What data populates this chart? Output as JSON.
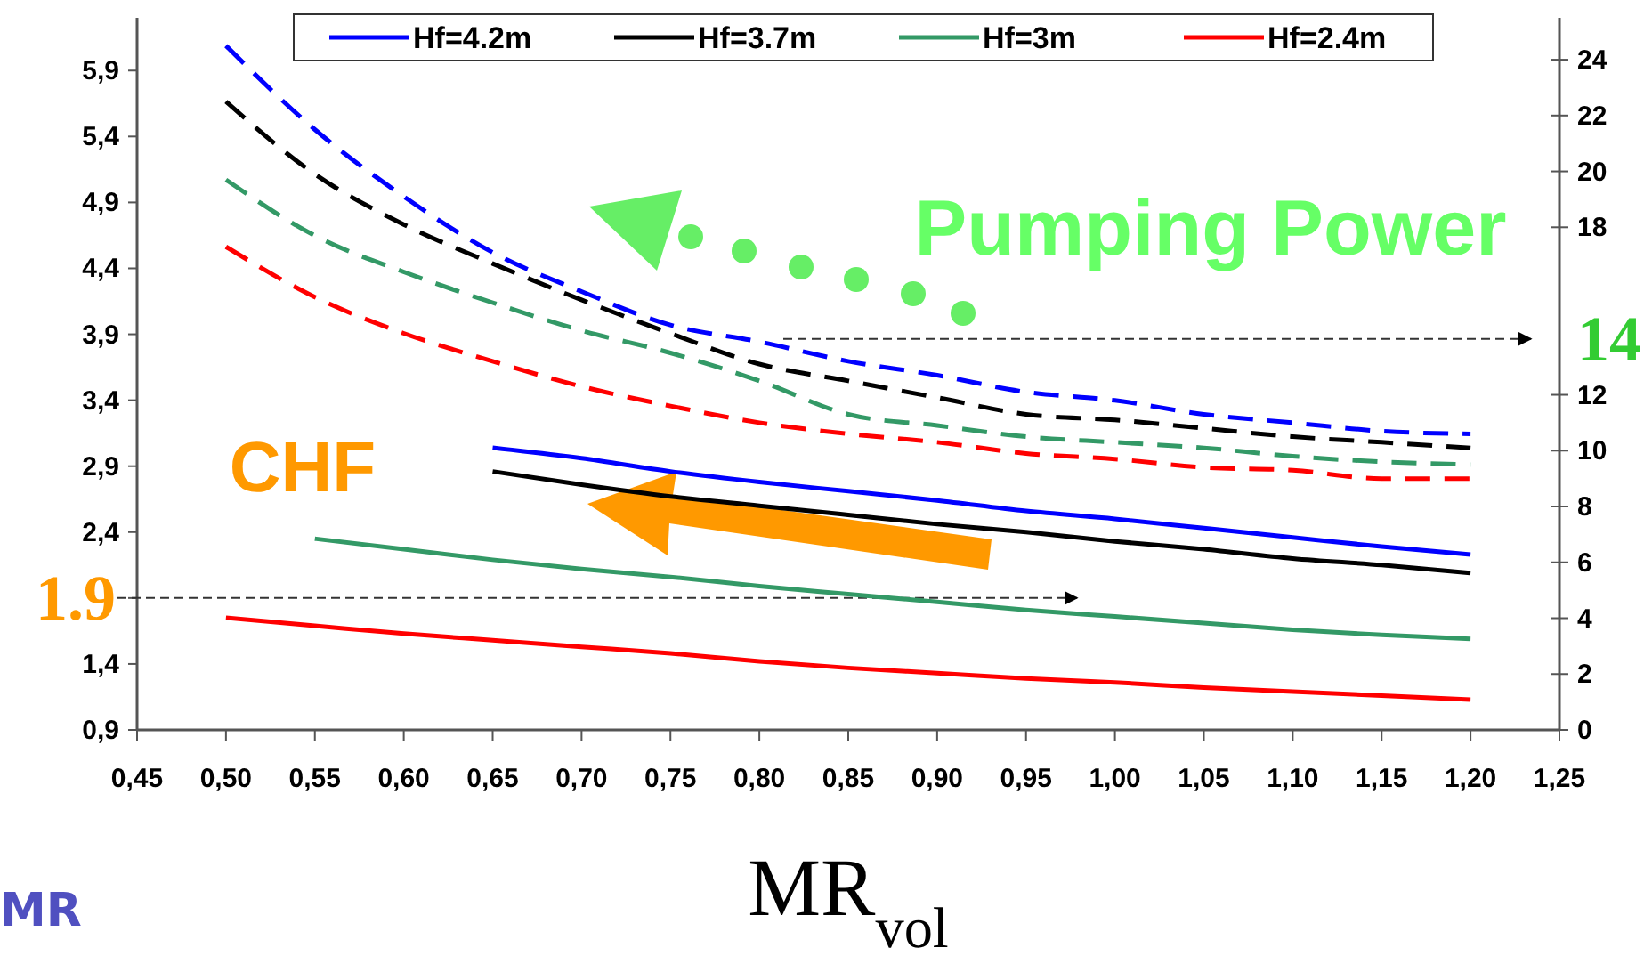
{
  "chart_data": {
    "type": "line",
    "xlabel": "MR$_{vol}$",
    "x": [
      0.5,
      0.55,
      0.6,
      0.65,
      0.7,
      0.75,
      0.8,
      0.85,
      0.9,
      0.95,
      1.0,
      1.05,
      1.1,
      1.15,
      1.2
    ],
    "xlim": [
      0.45,
      1.25
    ],
    "xticks": [
      {
        "value": 0.45,
        "label": "0,45"
      },
      {
        "value": 0.5,
        "label": "0,50"
      },
      {
        "value": 0.55,
        "label": "0,55"
      },
      {
        "value": 0.6,
        "label": "0,60"
      },
      {
        "value": 0.65,
        "label": "0,65"
      },
      {
        "value": 0.7,
        "label": "0,70"
      },
      {
        "value": 0.75,
        "label": "0,75"
      },
      {
        "value": 0.8,
        "label": "0,80"
      },
      {
        "value": 0.85,
        "label": "0,85"
      },
      {
        "value": 0.9,
        "label": "0,90"
      },
      {
        "value": 0.95,
        "label": "0,95"
      },
      {
        "value": 1.0,
        "label": "1,00"
      },
      {
        "value": 1.05,
        "label": "1,05"
      },
      {
        "value": 1.1,
        "label": "1,10"
      },
      {
        "value": 1.15,
        "label": "1,15"
      },
      {
        "value": 1.2,
        "label": "1,20"
      },
      {
        "value": 1.25,
        "label": "1,25"
      }
    ],
    "ylim": [
      0.9,
      6.3
    ],
    "yticks": [
      {
        "value": 0.9,
        "label": "0,9"
      },
      {
        "value": 1.4,
        "label": "1,4"
      },
      {
        "value": 1.9,
        "label": null
      },
      {
        "value": 2.4,
        "label": "2,4"
      },
      {
        "value": 2.9,
        "label": "2,9"
      },
      {
        "value": 3.4,
        "label": "3,4"
      },
      {
        "value": 3.9,
        "label": "3,9"
      },
      {
        "value": 4.4,
        "label": "4,4"
      },
      {
        "value": 4.9,
        "label": "4,9"
      },
      {
        "value": 5.4,
        "label": "5,4"
      },
      {
        "value": 5.9,
        "label": "5,9"
      }
    ],
    "y2lim": [
      0,
      25.5
    ],
    "y2ticks": [
      0,
      2,
      4,
      6,
      8,
      10,
      12,
      18,
      20,
      22,
      24
    ],
    "legend": "top",
    "grid": false,
    "marker": "none",
    "series": [
      {
        "name": "Hf=4.2m",
        "color": "#0000ff",
        "line_style": "solid",
        "values": [
          null,
          null,
          null,
          3.04,
          2.96,
          2.86,
          2.78,
          2.71,
          2.64,
          2.56,
          2.5,
          2.43,
          2.36,
          2.29,
          2.23
        ]
      },
      {
        "name": "Hf=3.7m",
        "color": "#000000",
        "line_style": "solid",
        "values": [
          null,
          null,
          null,
          2.86,
          2.76,
          2.67,
          2.6,
          2.53,
          2.46,
          2.4,
          2.33,
          2.27,
          2.2,
          2.15,
          2.09
        ]
      },
      {
        "name": "Hf=3m",
        "color": "#339966",
        "line_style": "solid",
        "values": [
          null,
          2.35,
          2.27,
          2.19,
          2.12,
          2.06,
          1.99,
          1.93,
          1.87,
          1.81,
          1.76,
          1.71,
          1.66,
          1.62,
          1.59
        ]
      },
      {
        "name": "Hf=2.4m",
        "color": "#ff0000",
        "line_style": "solid",
        "values": [
          1.75,
          1.69,
          1.63,
          1.58,
          1.53,
          1.48,
          1.42,
          1.37,
          1.33,
          1.29,
          1.26,
          1.22,
          1.19,
          1.16,
          1.13
        ]
      },
      {
        "color": "#0000ff",
        "line_style": "dashed",
        "axis": "y2",
        "values": [
          24.5,
          21.5,
          19.1,
          17.1,
          15.7,
          14.5,
          13.9,
          13.2,
          12.7,
          12.1,
          11.8,
          11.3,
          11.0,
          10.7,
          10.6
        ]
      },
      {
        "color": "#000000",
        "line_style": "dashed",
        "axis": "y2",
        "values": [
          22.5,
          19.9,
          18.1,
          16.7,
          15.4,
          14.2,
          13.1,
          12.5,
          11.9,
          11.3,
          11.1,
          10.8,
          10.5,
          10.3,
          10.1
        ]
      },
      {
        "color": "#339966",
        "line_style": "dashed",
        "axis": "y2",
        "values": [
          19.7,
          17.7,
          16.4,
          15.3,
          14.3,
          13.5,
          12.5,
          11.3,
          10.9,
          10.5,
          10.3,
          10.1,
          9.8,
          9.6,
          9.5
        ]
      },
      {
        "color": "#ff0000",
        "line_style": "dashed",
        "axis": "y2",
        "values": [
          17.3,
          15.5,
          14.2,
          13.2,
          12.3,
          11.6,
          11.0,
          10.6,
          10.3,
          9.9,
          9.7,
          9.4,
          9.3,
          9.0,
          9.0
        ]
      }
    ],
    "ref_lines": [
      {
        "axis": "y",
        "value": 1.9,
        "label": "1.9",
        "line_style": "dashed"
      },
      {
        "axis": "y2",
        "value": 14,
        "label": "14",
        "line_style": "dashed"
      }
    ],
    "annotations": [
      "Pumping Power",
      "CHF",
      "MR"
    ]
  }
}
